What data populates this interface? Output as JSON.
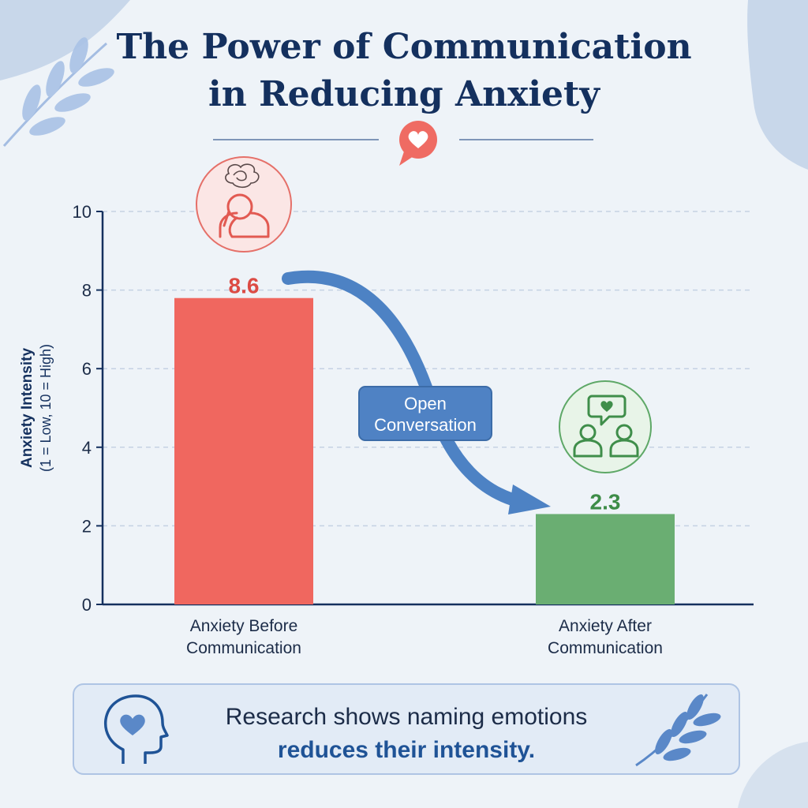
{
  "title_line1": "The Power of Communication",
  "title_line2": "in Reducing Anxiety",
  "chart_data": {
    "type": "bar",
    "categories": [
      [
        "Anxiety Before",
        "Communication"
      ],
      [
        "Anxiety After",
        "Communication"
      ]
    ],
    "values": [
      8.6,
      2.3
    ],
    "value_labels": [
      "8.6",
      "2.3"
    ],
    "ylabel": "Anxiety Intensity",
    "ylabel_note": "(1 = Low, 10 = High)",
    "ylim": [
      0,
      10
    ],
    "yticks": [
      0,
      2,
      4,
      6,
      8,
      10
    ],
    "grid": true,
    "annotation": [
      "Open",
      "Conversation"
    ],
    "bar_colors": [
      "#f0675f",
      "#6aae72"
    ]
  },
  "icons": {
    "before": "stressed-person-icon",
    "after": "conversation-heart-icon",
    "header": "heart-speech-bubble-icon",
    "callout": "head-heart-icon"
  },
  "colors": {
    "navy": "#14305e",
    "red": "#f0675f",
    "green": "#6aae72",
    "blue": "#4d82c4",
    "background": "#eef3f8"
  },
  "callout": {
    "line1": "Research shows naming emotions",
    "line2": "reduces their intensity."
  }
}
